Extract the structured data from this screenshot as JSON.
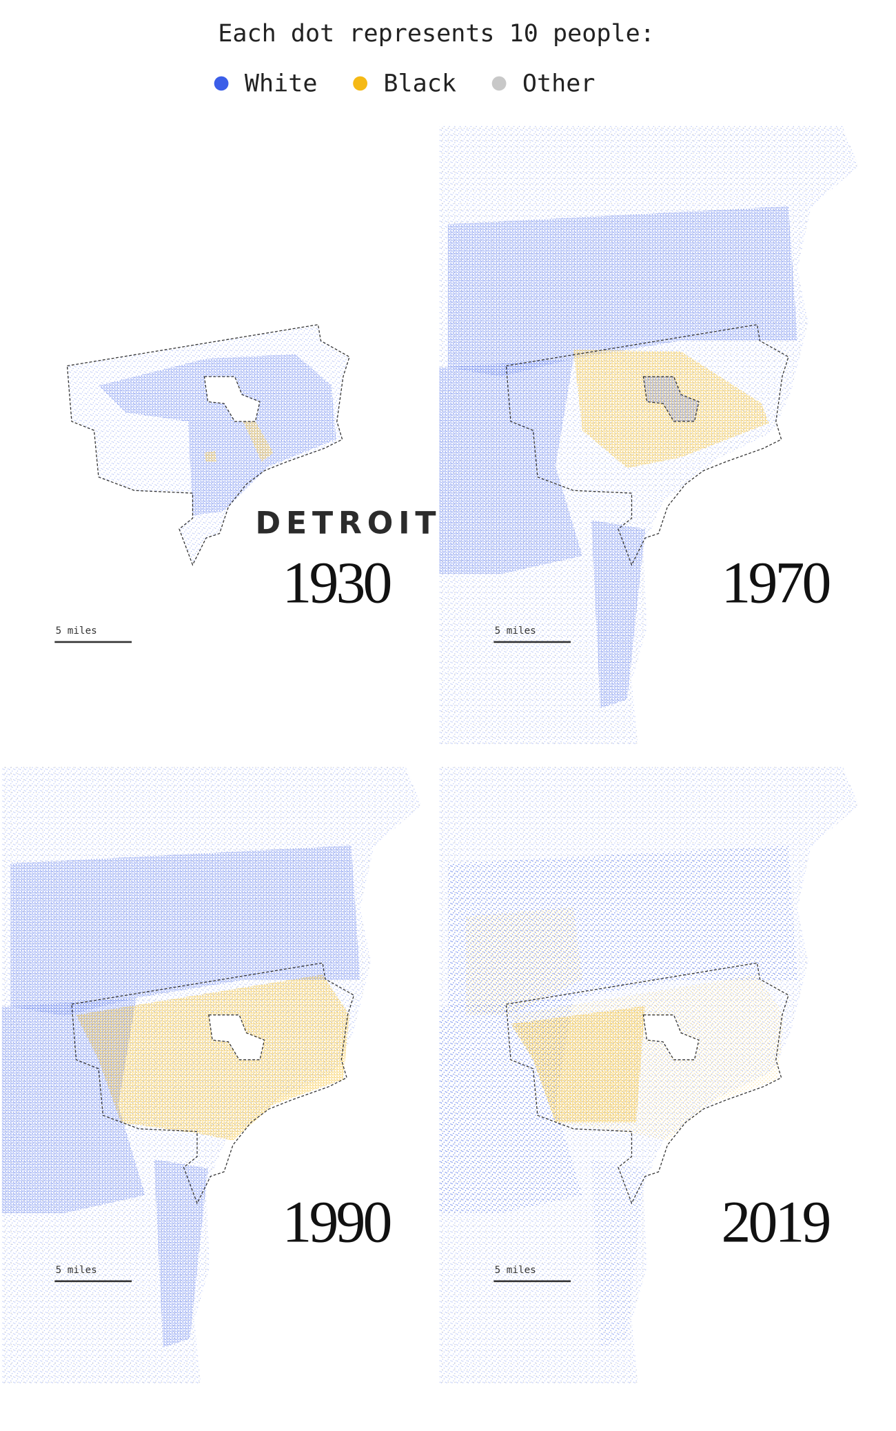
{
  "title": "Each dot represents 10 people:",
  "legend": [
    {
      "label": "White",
      "color": "#3b5ee8"
    },
    {
      "label": "Black",
      "color": "#f5b915"
    },
    {
      "label": "Other",
      "color": "#c8c8c8"
    }
  ],
  "city_label": "DETROIT",
  "panels": [
    {
      "year": "1930",
      "scale_label": "5 miles"
    },
    {
      "year": "1970",
      "scale_label": "5 miles"
    },
    {
      "year": "1990",
      "scale_label": "5 miles"
    },
    {
      "year": "2019",
      "scale_label": "5 miles"
    }
  ]
}
